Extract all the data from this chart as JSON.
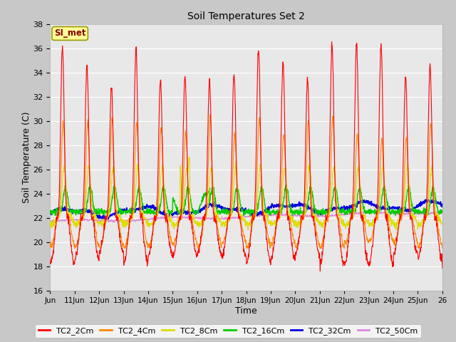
{
  "title": "Soil Temperatures Set 2",
  "xlabel": "Time",
  "ylabel": "Soil Temperature (C)",
  "ylim": [
    16,
    38
  ],
  "yticks": [
    16,
    18,
    20,
    22,
    24,
    26,
    28,
    30,
    32,
    34,
    36,
    38
  ],
  "fig_bg_color": "#c8c8c8",
  "plot_bg_color": "#e8e8e8",
  "series_colors": {
    "TC2_2Cm": "#ff0000",
    "TC2_4Cm": "#ff8800",
    "TC2_8Cm": "#dddd00",
    "TC2_16Cm": "#00cc00",
    "TC2_32Cm": "#0000dd",
    "TC2_50Cm": "#dd88dd"
  },
  "annotation_text": "SI_met",
  "annotation_color": "#880000",
  "annotation_bg": "#ffff99",
  "annotation_border": "#999900",
  "x_tick_labels": [
    "Jun",
    "11Jun",
    "12Jun",
    "13Jun",
    "14Jun",
    "15Jun",
    "16Jun",
    "17Jun",
    "18Jun",
    "19Jun",
    "20Jun",
    "21Jun",
    "22Jun",
    "23Jun",
    "24Jun",
    "25Jun",
    "26"
  ],
  "n_points": 1600,
  "seed": 42
}
